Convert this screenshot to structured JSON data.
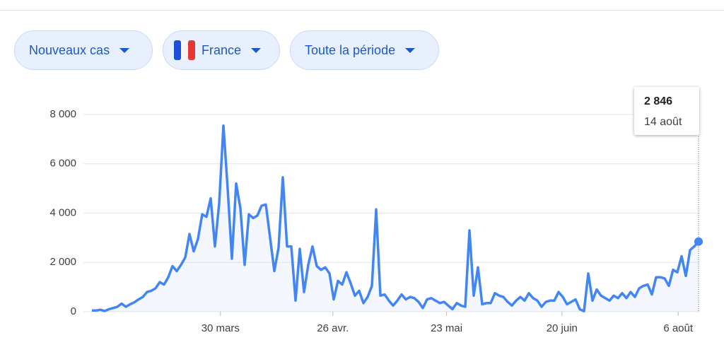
{
  "chips": [
    "Nouveaux cas",
    "France",
    "Toute la période"
  ],
  "chart_data": {
    "type": "line",
    "color": "#4285f4",
    "values": [
      50,
      50,
      80,
      30,
      100,
      150,
      200,
      330,
      200,
      300,
      380,
      500,
      600,
      800,
      850,
      950,
      1200,
      1100,
      1400,
      1850,
      1650,
      1900,
      2200,
      3150,
      2450,
      2950,
      3950,
      3850,
      4600,
      2650,
      4400,
      7550,
      5000,
      2150,
      5200,
      4200,
      1900,
      3950,
      3800,
      3900,
      4300,
      4350,
      3000,
      1650,
      2600,
      5450,
      2650,
      2650,
      450,
      2550,
      800,
      1900,
      2650,
      1850,
      1700,
      1800,
      1550,
      500,
      1250,
      1100,
      1600,
      1150,
      650,
      850,
      350,
      600,
      1050,
      4150,
      650,
      700,
      450,
      250,
      450,
      700,
      500,
      600,
      550,
      400,
      150,
      500,
      550,
      450,
      350,
      400,
      250,
      100,
      350,
      250,
      200,
      3300,
      650,
      1800,
      300,
      350,
      350,
      750,
      650,
      600,
      400,
      250,
      450,
      600,
      450,
      750,
      550,
      450,
      200,
      400,
      450,
      450,
      800,
      600,
      300,
      400,
      500,
      100,
      20,
      1550,
      450,
      900,
      650,
      550,
      450,
      650,
      550,
      750,
      550,
      800,
      600,
      950,
      1050,
      1100,
      700,
      1400,
      1400,
      1350,
      1050,
      1700,
      1600,
      2250,
      1450,
      2500,
      2650,
      2846
    ],
    "ylim": [
      0,
      8000
    ],
    "yticks": [
      0,
      {
        "value": 2000,
        "label": "2 000"
      },
      {
        "value": 4000,
        "label": "4 000"
      },
      {
        "value": 6000,
        "label": "6 000"
      },
      {
        "value": 8000,
        "label": "8 000"
      }
    ],
    "xticks": [
      {
        "value": 30.3,
        "label": "30 mars"
      },
      {
        "value": 56.8,
        "label": "26 avr."
      },
      {
        "value": 83.6,
        "label": "23 mai"
      },
      {
        "value": 110.8,
        "label": "20 juin"
      },
      {
        "value": 138.2,
        "label": "6 août"
      }
    ],
    "grid": true,
    "tooltip": {
      "label": "2 846",
      "date": "14 août"
    }
  }
}
